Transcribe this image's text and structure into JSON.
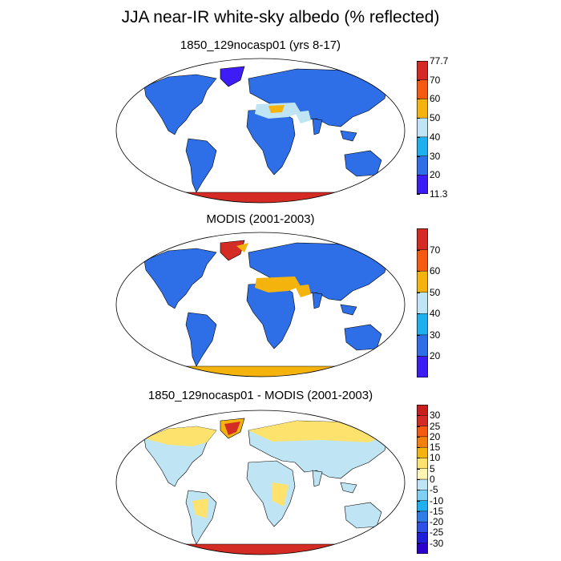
{
  "title": "JJA near-IR white-sky albedo (% reflected)",
  "panels": [
    {
      "subtitle": "1850_129nocasp01 (yrs 8-17)",
      "kind": "model",
      "colorbar": {
        "colors": [
          "#3d1cf5",
          "#2e6ee6",
          "#1fb0f0",
          "#bfe4f4",
          "#f5b40d",
          "#f55a0f",
          "#d42b25"
        ],
        "ticks": [
          "77.7",
          "70",
          "60",
          "50",
          "40",
          "30",
          "20",
          "11.3"
        ]
      }
    },
    {
      "subtitle": "MODIS (2001-2003)",
      "kind": "obs",
      "colorbar": {
        "colors": [
          "#3d1cf5",
          "#2e6ee6",
          "#1fb0f0",
          "#bfe4f4",
          "#f5b40d",
          "#f55a0f",
          "#d42b25"
        ],
        "ticks": [
          "70",
          "60",
          "50",
          "40",
          "30",
          "20"
        ]
      }
    },
    {
      "subtitle": "1850_129nocasp01 - MODIS (2001-2003)",
      "kind": "diff",
      "colorbar": {
        "colors": [
          "#2c00cc",
          "#1f1fd9",
          "#2e50e6",
          "#2f7de6",
          "#1fb0f0",
          "#7fd0f2",
          "#bfe4f4",
          "#fff5b3",
          "#fde36e",
          "#f5b40d",
          "#f57f0d",
          "#f55a0f",
          "#d42b25",
          "#c81e1e"
        ],
        "ticks": [
          "30",
          "25",
          "20",
          "15",
          "10",
          "5",
          "0",
          "-5",
          "-10",
          "-15",
          "-20",
          "-25",
          "-30"
        ]
      }
    }
  ],
  "colors": {
    "land_model": "#2e6ee6",
    "desert_light": "#bfe4f4",
    "desert_orange": "#f5b40d",
    "antarctica_red": "#d42b25",
    "deep_blue": "#3d1cf5",
    "diff_neutral": "#bfe4f4",
    "diff_pos": "#fde36e"
  }
}
